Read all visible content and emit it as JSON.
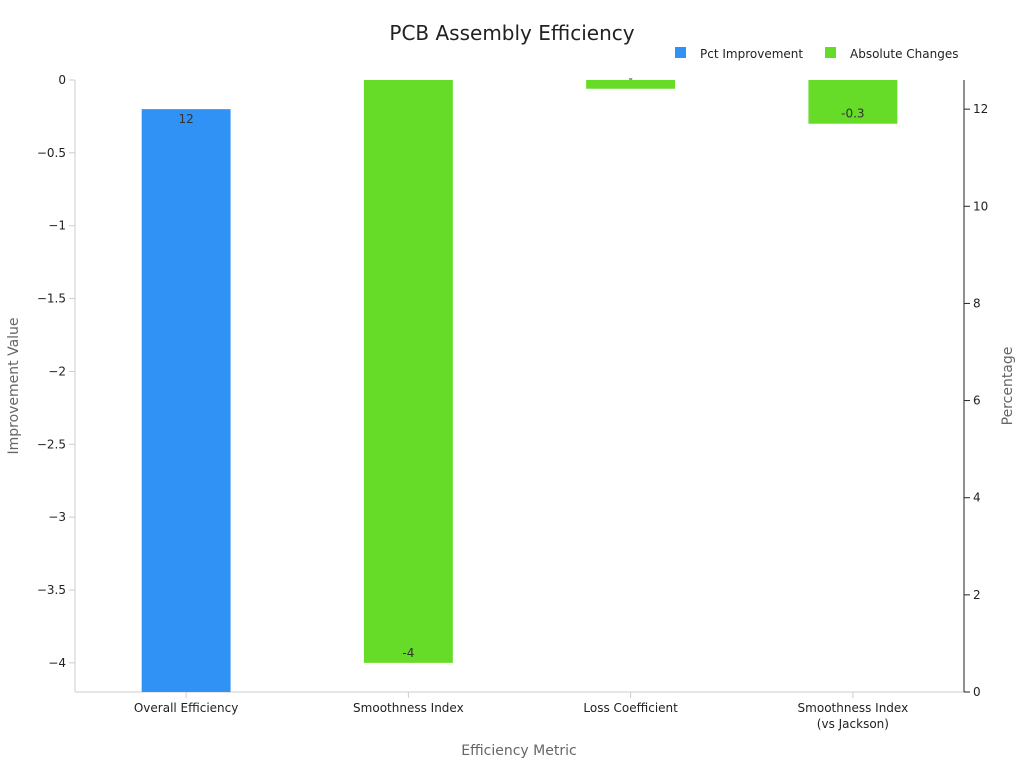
{
  "chart_data": {
    "type": "bar",
    "title": "PCB Assembly Efficiency",
    "xlabel": "Efficiency Metric",
    "ylabel_left": "Improvement Value",
    "ylabel_right": "Percentage",
    "categories": [
      "Overall Efficiency",
      "Smoothness Index",
      "Loss Coefficient",
      "Smoothness Index\n(vs Jackson)"
    ],
    "y_left": {
      "range": [
        -4.2,
        0
      ],
      "ticks": [
        0,
        -0.5,
        -1,
        -1.5,
        -2,
        -2.5,
        -3,
        -3.5,
        -4
      ],
      "tick_labels": [
        "0",
        "−0.5",
        "−1",
        "−1.5",
        "−2",
        "−2.5",
        "−3",
        "−3.5",
        "−4"
      ]
    },
    "y_right": {
      "range": [
        0,
        12.6
      ],
      "ticks": [
        0,
        2,
        4,
        6,
        8,
        10,
        12
      ],
      "tick_labels": [
        "0",
        "2",
        "4",
        "6",
        "8",
        "10",
        "12"
      ]
    },
    "legend": {
      "placement": "top-right",
      "entries": [
        "Pct Improvement",
        "Absolute Changes"
      ]
    },
    "series": [
      {
        "name": "Pct Improvement",
        "axis": "right",
        "color": "#3192f6",
        "values": [
          12,
          null,
          null,
          null
        ],
        "labels": [
          "12",
          "",
          "",
          ""
        ]
      },
      {
        "name": "Absolute Changes",
        "axis": "left",
        "color": "#66db28",
        "values": [
          null,
          -4,
          -0.06,
          -0.3
        ],
        "labels": [
          "",
          "-4",
          "-",
          "-0.3"
        ]
      }
    ],
    "grid": false
  }
}
